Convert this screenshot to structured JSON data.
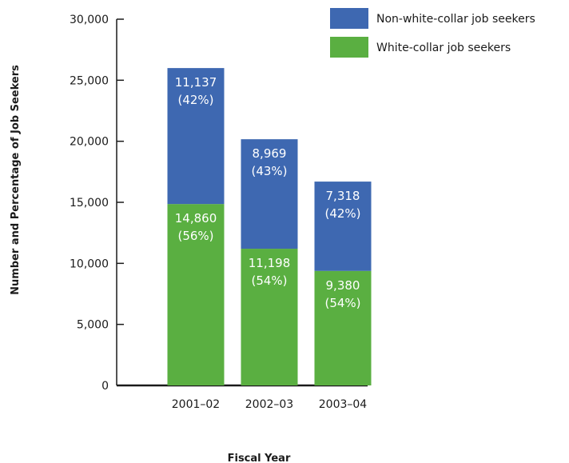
{
  "chart_data": {
    "type": "bar",
    "stacked": true,
    "categories": [
      "2001–02",
      "2002–03",
      "2003–04"
    ],
    "series": [
      {
        "name": "White-collar job seekers",
        "color": "#5aaf41",
        "values": [
          14860,
          11198,
          9380
        ],
        "value_labels": [
          "14,860",
          "11,198",
          "9,380"
        ],
        "percent_labels": [
          "(56%)",
          "(54%)",
          "(54%)"
        ]
      },
      {
        "name": "Non-white-collar job seekers",
        "color": "#3e68b1",
        "values": [
          11137,
          8969,
          7318
        ],
        "value_labels": [
          "11,137",
          "8,969",
          "7,318"
        ],
        "percent_labels": [
          "(42%)",
          "(43%)",
          "(42%)"
        ]
      }
    ],
    "xlabel": "Fiscal Year",
    "ylabel": "Number and Percentage of Job Seekers",
    "ylim": [
      0,
      30000
    ],
    "yticks": [
      0,
      5000,
      10000,
      15000,
      20000,
      25000,
      30000
    ],
    "ytick_labels": [
      "0",
      "5,000",
      "10,000",
      "15,000",
      "20,000",
      "25,000",
      "30,000"
    ],
    "grid": false,
    "legend_position": "top-right",
    "legend_order": [
      "Non-white-collar job seekers",
      "White-collar job seekers"
    ]
  }
}
